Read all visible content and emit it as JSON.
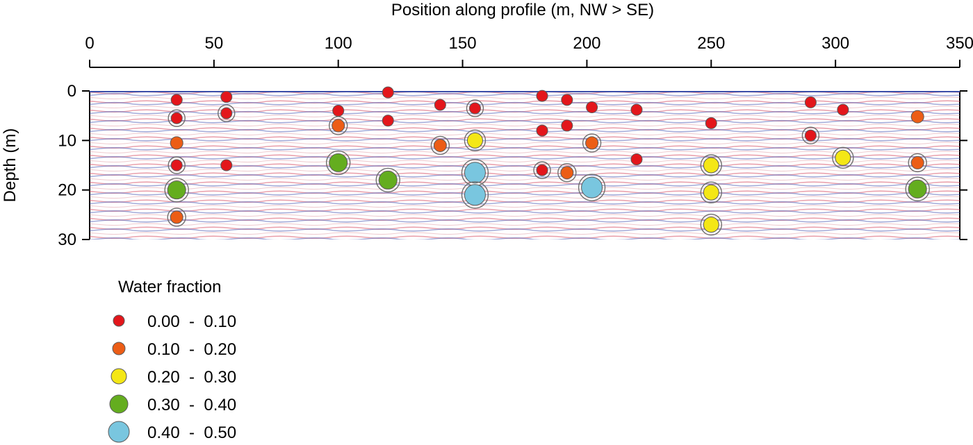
{
  "chart_data": {
    "type": "scatter",
    "title": "",
    "xlabel": "Position along profile (m, NW > SE)",
    "ylabel": "Depth (m)",
    "xlim": [
      0,
      350
    ],
    "ylim": [
      0,
      30
    ],
    "y_inverted": true,
    "x_axis_position": "top",
    "x_ticks": [
      0,
      50,
      100,
      150,
      200,
      250,
      300,
      350
    ],
    "y_ticks": [
      0,
      10,
      20,
      30
    ],
    "x_tick_labels": [
      "0",
      "50",
      "100",
      "150",
      "200",
      "250",
      "300",
      "350"
    ],
    "y_tick_labels": [
      "0",
      "10",
      "20",
      "30"
    ],
    "background": "radar profile (red/blue reflection bands)",
    "legend": {
      "title": "Water fraction",
      "placement": "bottom-left",
      "entries": [
        {
          "label": "0.00  -  0.10",
          "color": "#e3161b",
          "class": 0
        },
        {
          "label": "0.10  -  0.20",
          "color": "#ec5d16",
          "class": 1
        },
        {
          "label": "0.20  -  0.30",
          "color": "#f4e716",
          "class": 2
        },
        {
          "label": "0.30  -  0.40",
          "color": "#64ad1f",
          "class": 3
        },
        {
          "label": "0.40  -  0.50",
          "color": "#79c6df",
          "class": 4
        }
      ]
    },
    "points": [
      {
        "x": 35,
        "y": 1.8,
        "class": 0,
        "ring": false
      },
      {
        "x": 35,
        "y": 5.5,
        "class": 0,
        "ring": true
      },
      {
        "x": 35,
        "y": 10.5,
        "class": 1,
        "ring": false
      },
      {
        "x": 35,
        "y": 15,
        "class": 0,
        "ring": true
      },
      {
        "x": 35,
        "y": 20,
        "class": 3,
        "ring": true
      },
      {
        "x": 35,
        "y": 25.5,
        "class": 1,
        "ring": true
      },
      {
        "x": 55,
        "y": 1.2,
        "class": 0,
        "ring": false
      },
      {
        "x": 55,
        "y": 4.5,
        "class": 0,
        "ring": true
      },
      {
        "x": 55,
        "y": 15,
        "class": 0,
        "ring": false
      },
      {
        "x": 100,
        "y": 4,
        "class": 0,
        "ring": false
      },
      {
        "x": 100,
        "y": 7,
        "class": 1,
        "ring": true
      },
      {
        "x": 100,
        "y": 14.5,
        "class": 3,
        "ring": true
      },
      {
        "x": 120,
        "y": 0.3,
        "class": 0,
        "ring": false
      },
      {
        "x": 120,
        "y": 6,
        "class": 0,
        "ring": false
      },
      {
        "x": 120,
        "y": 18,
        "class": 3,
        "ring": true
      },
      {
        "x": 141,
        "y": 2.8,
        "class": 0,
        "ring": false
      },
      {
        "x": 141,
        "y": 11,
        "class": 1,
        "ring": true
      },
      {
        "x": 155,
        "y": 3.5,
        "class": 0,
        "ring": true
      },
      {
        "x": 155,
        "y": 10,
        "class": 2,
        "ring": true
      },
      {
        "x": 155,
        "y": 16.5,
        "class": 4,
        "ring": true
      },
      {
        "x": 155,
        "y": 21,
        "class": 4,
        "ring": true
      },
      {
        "x": 182,
        "y": 1,
        "class": 0,
        "ring": false
      },
      {
        "x": 182,
        "y": 8,
        "class": 0,
        "ring": false
      },
      {
        "x": 182,
        "y": 16,
        "class": 0,
        "ring": true
      },
      {
        "x": 192,
        "y": 1.8,
        "class": 0,
        "ring": false
      },
      {
        "x": 192,
        "y": 7,
        "class": 0,
        "ring": false
      },
      {
        "x": 192,
        "y": 16.5,
        "class": 1,
        "ring": true
      },
      {
        "x": 202,
        "y": 3.3,
        "class": 0,
        "ring": false
      },
      {
        "x": 202,
        "y": 10.5,
        "class": 1,
        "ring": true
      },
      {
        "x": 202,
        "y": 19.5,
        "class": 4,
        "ring": true
      },
      {
        "x": 220,
        "y": 3.8,
        "class": 0,
        "ring": false
      },
      {
        "x": 220,
        "y": 13.8,
        "class": 0,
        "ring": false
      },
      {
        "x": 250,
        "y": 6.5,
        "class": 0,
        "ring": false
      },
      {
        "x": 250,
        "y": 15,
        "class": 2,
        "ring": true
      },
      {
        "x": 250,
        "y": 20.5,
        "class": 2,
        "ring": true
      },
      {
        "x": 250,
        "y": 27,
        "class": 2,
        "ring": true
      },
      {
        "x": 290,
        "y": 2.3,
        "class": 0,
        "ring": false
      },
      {
        "x": 290,
        "y": 9,
        "class": 0,
        "ring": true
      },
      {
        "x": 303,
        "y": 3.8,
        "class": 0,
        "ring": false
      },
      {
        "x": 303,
        "y": 13.5,
        "class": 2,
        "ring": true
      },
      {
        "x": 333,
        "y": 5.2,
        "class": 1,
        "ring": false
      },
      {
        "x": 333,
        "y": 14.5,
        "class": 1,
        "ring": true
      },
      {
        "x": 333,
        "y": 19.8,
        "class": 3,
        "ring": true
      }
    ]
  }
}
